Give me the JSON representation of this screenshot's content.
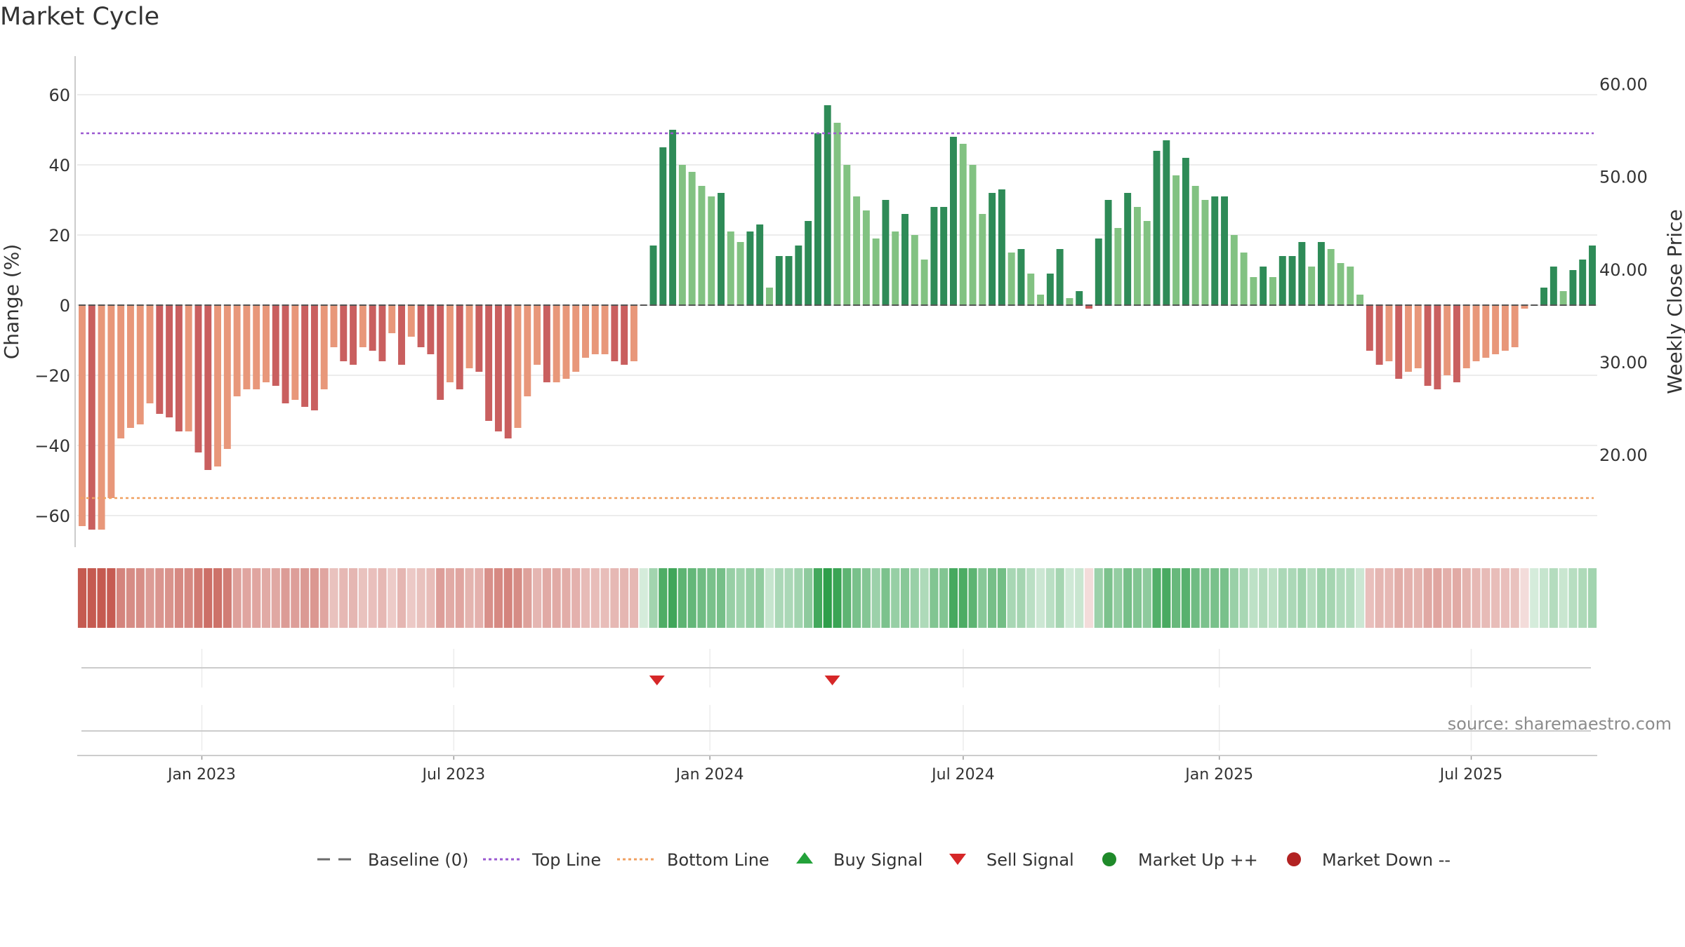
{
  "chart_data": {
    "type": "bar",
    "title": "Market Cycle",
    "ylabel": "Change (%)",
    "ylabel_right": "Weekly Close Price",
    "ylim": [
      -69,
      71
    ],
    "yticks": [
      60,
      40,
      20,
      0,
      -20,
      -40,
      -60
    ],
    "ytick_labels": [
      "60",
      "40",
      "20",
      "0",
      "−20",
      "−40",
      "−60"
    ],
    "ylim_right": [
      10,
      63
    ],
    "yticks_right": [
      60,
      50,
      40,
      30,
      20
    ],
    "ytick_labels_right": [
      "60.00",
      "50.00",
      "40.00",
      "30.00",
      "20.00"
    ],
    "x_start": "2022-10-07",
    "x_end": "2025-09-26",
    "xticks": [
      "2023-01-01",
      "2023-07-01",
      "2024-01-01",
      "2024-07-01",
      "2025-01-01",
      "2025-07-01"
    ],
    "xtick_labels": [
      "Jan 2023",
      "Jul 2023",
      "Jan 2024",
      "Jul 2024",
      "Jan 2025",
      "Jul 2025"
    ],
    "reference_lines": {
      "baseline": 0,
      "top_line": 49,
      "bottom_line": -55
    },
    "values": [
      -63,
      -64,
      -64,
      -55,
      -38,
      -35,
      -34,
      -28,
      -31,
      -32,
      -36,
      -36,
      -42,
      -47,
      -46,
      -41,
      -26,
      -24,
      -24,
      -22,
      -23,
      -28,
      -27,
      -29,
      -30,
      -24,
      -12,
      -16,
      -17,
      -12,
      -13,
      -16,
      -8,
      -17,
      -9,
      -12,
      -14,
      -27,
      -22,
      -24,
      -18,
      -19,
      -33,
      -36,
      -38,
      -35,
      -26,
      -17,
      -22,
      -22,
      -21,
      -19,
      -15,
      -14,
      -14,
      -16,
      -17,
      -16,
      0,
      17,
      45,
      50,
      40,
      38,
      34,
      31,
      32,
      21,
      18,
      21,
      23,
      5,
      14,
      14,
      17,
      24,
      49,
      57,
      52,
      40,
      31,
      27,
      19,
      30,
      21,
      26,
      20,
      13,
      28,
      28,
      48,
      46,
      40,
      26,
      32,
      33,
      15,
      16,
      9,
      3,
      9,
      16,
      2,
      4,
      -1,
      19,
      30,
      22,
      32,
      28,
      24,
      44,
      47,
      37,
      42,
      34,
      30,
      31,
      31,
      20,
      15,
      8,
      11,
      8,
      14,
      14,
      18,
      11,
      18,
      16,
      12,
      11,
      3,
      -13,
      -17,
      -16,
      -21,
      -19,
      -18,
      -23,
      -24,
      -20,
      -22,
      -18,
      -16,
      -15,
      -14,
      -13,
      -12,
      -1,
      0,
      5,
      11,
      4,
      10,
      13,
      17
    ],
    "sell_signals": [
      "2023-11-24",
      "2024-03-29"
    ],
    "source": "source: sharemaestro.com",
    "legend_position": "bottom",
    "legend": [
      {
        "label": "Baseline (0)",
        "type": "baseline",
        "color": "#6b6b6b"
      },
      {
        "label": "Top Line",
        "type": "top-line",
        "color": "#9b59d0"
      },
      {
        "label": "Bottom Line",
        "type": "bottom-line",
        "color": "#f0a060"
      },
      {
        "label": "Buy Signal",
        "type": "buy-signal",
        "color": "#23a23a"
      },
      {
        "label": "Sell Signal",
        "type": "sell-signal",
        "color": "#d62728"
      },
      {
        "label": "Market Up ++",
        "type": "market-up",
        "color": "#1f8a2a"
      },
      {
        "label": "Market Down --",
        "type": "market-down",
        "color": "#b22222"
      }
    ],
    "colors": {
      "pos_dark": "#2e8b57",
      "pos_light": "#82c282",
      "neg_dark": "#c95f5f",
      "neg_light": "#e8977a",
      "heat_pos": "#2e9e4a",
      "heat_neg": "#c55a50"
    },
    "grid": true
  }
}
